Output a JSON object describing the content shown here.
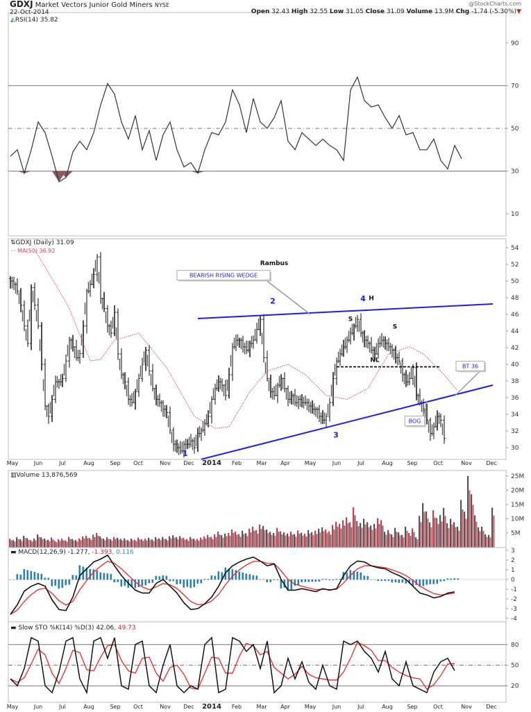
{
  "header": {
    "symbol": "GDXJ",
    "name": "Market Vectors Junior Gold Miners",
    "exchange": "NYSE",
    "date": "22-Oct-2014",
    "watermark": "@StockCharts.com",
    "open_label": "Open",
    "open": "32.43",
    "high_label": "High",
    "high": "32.55",
    "low_label": "Low",
    "low": "31.05",
    "close_label": "Close",
    "close": "31.09",
    "volume_label": "Volume",
    "volume": "13.9M",
    "chg_label": "Chg",
    "chg": "-1.74 (-5.30%)",
    "down_arrow": "▼"
  },
  "colors": {
    "price": "#222222",
    "ma": "#e0405a",
    "trend": "#1a1aff",
    "vol_up": "#c8404f",
    "vol_down": "#555555",
    "macd_hist": "#2a7fb0",
    "signal": "#ff2020"
  },
  "chart_data": [
    {
      "type": "line",
      "panel": "rsi",
      "legend": "RSI(14) 35.82",
      "ylim": [
        0,
        100
      ],
      "yticks": [
        "90",
        "70",
        "50",
        "30",
        "10"
      ],
      "ytick_values": [
        90,
        70,
        50,
        30,
        10
      ],
      "bar_step": 2,
      "values": [
        37,
        40,
        29,
        40,
        53,
        48,
        37,
        25,
        27,
        39,
        44,
        40,
        48,
        61,
        71,
        66,
        53,
        45,
        56,
        40,
        49,
        35,
        47,
        53,
        40,
        32,
        34,
        29,
        40,
        48,
        47,
        53,
        68,
        61,
        48,
        64,
        53,
        50,
        55,
        63,
        44,
        40,
        48,
        45,
        42,
        45,
        42,
        40,
        35,
        68,
        74,
        63,
        60,
        61,
        55,
        50,
        56,
        47,
        48,
        40,
        40,
        45,
        35,
        31,
        42,
        35.82
      ]
    },
    {
      "type": "ohlc",
      "panel": "price",
      "legend": "GDXJ (Daily) 31.09",
      "ma_legend": "MA(50) 36.92",
      "ylim": [
        29,
        55
      ],
      "yticks": [
        "54",
        "52",
        "50",
        "48",
        "46",
        "44",
        "42",
        "40",
        "38",
        "36",
        "34",
        "32",
        "30"
      ],
      "ytick_values": [
        54,
        52,
        50,
        48,
        46,
        44,
        42,
        40,
        38,
        36,
        34,
        32,
        30
      ],
      "x_labels": [
        {
          "label": "May",
          "pos": 0.6
        },
        {
          "label": "Jun",
          "pos": 8
        },
        {
          "label": "Jul",
          "pos": 15
        },
        {
          "label": "Aug",
          "pos": 22.6
        },
        {
          "label": "Sep",
          "pos": 30.2
        },
        {
          "label": "Oct",
          "pos": 36.8
        },
        {
          "label": "Nov",
          "pos": 44.6
        },
        {
          "label": "Dec",
          "pos": 51.4
        },
        {
          "label": "2014",
          "pos": 58,
          "bold": true
        },
        {
          "label": "Feb",
          "pos": 65.2
        },
        {
          "label": "Mar",
          "pos": 72.4
        },
        {
          "label": "Apr",
          "pos": 79.2
        },
        {
          "label": "May",
          "pos": 86.4
        },
        {
          "label": "Jun",
          "pos": 94
        },
        {
          "label": "Jul",
          "pos": 101
        },
        {
          "label": "Aug",
          "pos": 108.6
        },
        {
          "label": "Sep",
          "pos": 115.8
        },
        {
          "label": "Oct",
          "pos": 123.2
        },
        {
          "label": "Nov",
          "pos": 131.4
        },
        {
          "label": "Dec",
          "pos": 138.6
        }
      ],
      "close": [
        50.0,
        49.6,
        48.8,
        47.1,
        44.6,
        42.5,
        49.2,
        47.1,
        44.6,
        40.0,
        35.0,
        33.75,
        35.8,
        37.9,
        37.9,
        38.3,
        40.4,
        42.9,
        42.1,
        40.8,
        41.3,
        44.6,
        48.8,
        49.6,
        50.8,
        52.9,
        47.9,
        46.7,
        44.6,
        43.75,
        46.25,
        41.25,
        38.75,
        37.9,
        35.8,
        35.4,
        36.7,
        38.3,
        40.0,
        41.7,
        39.2,
        37.1,
        35.8,
        35.4,
        34.6,
        34.2,
        32.1,
        30.4,
        30.0,
        29.6,
        30.4,
        30.4,
        30.8,
        30.0,
        31.7,
        32.1,
        32.9,
        33.75,
        35.8,
        37.1,
        37.9,
        37.5,
        36.25,
        38.75,
        42.1,
        42.9,
        42.9,
        42.1,
        41.7,
        42.5,
        42.9,
        44.2,
        45.4,
        40.8,
        38.3,
        36.7,
        36.25,
        37.5,
        38.3,
        37.1,
        35.8,
        36.25,
        35.4,
        35.8,
        35.4,
        35.4,
        35.0,
        34.6,
        34.6,
        33.75,
        33.3,
        33.75,
        35.4,
        38.3,
        40.4,
        41.25,
        42.1,
        42.9,
        43.75,
        44.6,
        45.4,
        43.75,
        42.9,
        42.5,
        41.7,
        41.25,
        42.5,
        42.9,
        42.5,
        42.1,
        41.7,
        40.8,
        40.4,
        38.75,
        37.9,
        38.3,
        39.6,
        36.25,
        35.4,
        34.6,
        33.3,
        31.7,
        32.5,
        33.75,
        33.3,
        31.09
      ],
      "ma50": [
        [
          7,
          53.75
        ],
        [
          13,
          49.6
        ],
        [
          17,
          46.7
        ],
        [
          23,
          40.4
        ],
        [
          26,
          40.6
        ],
        [
          30,
          42.9
        ],
        [
          37,
          43.75
        ],
        [
          45,
          39.6
        ],
        [
          53,
          33.75
        ],
        [
          59,
          32.3
        ],
        [
          63,
          32.5
        ],
        [
          69,
          36.7
        ],
        [
          74,
          39.2
        ],
        [
          80,
          40.0
        ],
        [
          85,
          38.75
        ],
        [
          91,
          36.25
        ],
        [
          97,
          35.8
        ],
        [
          103,
          37.1
        ],
        [
          109,
          41.25
        ],
        [
          115,
          42.1
        ],
        [
          119,
          41.25
        ],
        [
          125,
          38.75
        ],
        [
          128.6,
          36.92
        ]
      ],
      "trendlines": [
        {
          "name": "wedge-upper",
          "from": [
            54,
            45.5
          ],
          "to": [
            139,
            47.25
          ],
          "style": "solid"
        },
        {
          "name": "wedge-lower",
          "from": [
            55,
            28.6
          ],
          "to": [
            139,
            37.5
          ],
          "style": "solid"
        },
        {
          "name": "neckline",
          "from": [
            94,
            39.7
          ],
          "to": [
            124,
            39.7
          ],
          "style": "dashed"
        }
      ],
      "annotations": [
        {
          "id": "title",
          "text": "Rambus",
          "pos": [
            76,
            51.9
          ],
          "kind": "bold"
        },
        {
          "id": "wave-1",
          "text": "1",
          "pos": [
            50.4,
            29.0
          ],
          "kind": "wave"
        },
        {
          "id": "wave-2",
          "text": "2",
          "pos": [
            75.6,
            47.3
          ],
          "kind": "wave"
        },
        {
          "id": "wave-3",
          "text": "3",
          "pos": [
            93.8,
            31.2
          ],
          "kind": "wave"
        },
        {
          "id": "wave-4",
          "text": "4",
          "pos": [
            101.6,
            47.6
          ],
          "kind": "wave"
        },
        {
          "id": "head",
          "text": "H",
          "pos": [
            104,
            47.7
          ],
          "kind": "bold"
        },
        {
          "id": "left-shoulder",
          "text": "S",
          "pos": [
            98,
            45.2
          ],
          "kind": "bold"
        },
        {
          "id": "right-shoulder",
          "text": "S",
          "pos": [
            110.8,
            44.3
          ],
          "kind": "bold"
        },
        {
          "id": "neckline-label",
          "text": "NL",
          "pos": [
            105,
            40.3
          ],
          "kind": "bold"
        }
      ],
      "callouts": [
        {
          "id": "bearish-rising-wedge",
          "text": "BEARISH RISING WEDGE",
          "pos": [
            61.4,
            50.7
          ],
          "target": [
            86.4,
            46.0
          ]
        },
        {
          "id": "bt-36",
          "text": "BT 36",
          "pos": [
            132.5,
            39.8
          ],
          "target": [
            128,
            36.2
          ]
        },
        {
          "id": "bog",
          "text": "BOG",
          "pos": [
            116.5,
            33.2
          ],
          "target": [
            120,
            35.6
          ]
        }
      ]
    },
    {
      "type": "bar",
      "panel": "volume",
      "legend": "Volume 13,876,569",
      "ylim": [
        0,
        26
      ],
      "yticks": [
        "25M",
        "20M",
        "15M",
        "10M",
        "5M"
      ],
      "ytick_values": [
        25,
        20,
        15,
        10,
        5
      ],
      "values_millions": [
        3,
        2.5,
        3.5,
        2.8,
        4,
        3.2,
        2.5,
        3,
        4.5,
        3.5,
        3,
        2.6,
        3.4,
        2.2,
        2.8,
        3,
        2.4,
        3.6,
        2.9,
        2.5,
        3.1,
        3.8,
        4,
        3.2,
        4.4,
        5,
        3.8,
        3,
        3.5,
        2.8,
        3.6,
        3.3,
        2.9,
        3.1,
        2.5,
        3,
        2.6,
        3.4,
        2.8,
        3,
        3.3,
        2.7,
        3.5,
        3.1,
        3.6,
        2.9,
        3.8,
        4.2,
        3.5,
        3.9,
        3.3,
        2.8,
        3.6,
        3,
        2.9,
        3.4,
        3.8,
        4.3,
        3.6,
        4.5,
        5.5,
        4.2,
        4.8,
        5,
        6.2,
        5.5,
        4.6,
        5.8,
        4.9,
        6.5,
        7.2,
        6,
        8,
        7.5,
        6.2,
        5.4,
        5,
        6.8,
        5.6,
        5.2,
        4.8,
        5.5,
        4.6,
        5.9,
        5.1,
        4.7,
        6,
        5.3,
        5.8,
        6.5,
        7,
        6.2,
        5.6,
        7.8,
        9,
        8.2,
        9.5,
        10.5,
        8.8,
        14,
        9.2,
        8.5,
        10,
        8.8,
        7.6,
        8.2,
        10.2,
        9.5,
        5.4,
        6,
        4.5,
        6.8,
        5.2,
        4.3,
        7.2,
        5,
        6.6,
        3.5,
        11,
        15.5,
        12.6,
        8.7,
        13,
        10.2,
        11.3,
        13.8,
        8.4,
        10,
        8.8,
        7.2,
        16.6,
        12.5,
        25,
        18.6,
        11.2,
        7,
        7.2,
        4.5,
        4.3,
        13.9
      ],
      "up_days_hint": "red=up, gray=down"
    },
    {
      "type": "line",
      "panel": "macd",
      "legend_prefix": "MACD(12,26,9)",
      "legend_macd": "-1.277",
      "legend_signal": ", -1.393",
      "legend_hist": ", 0.116",
      "ylim": [
        -4.3,
        3.3
      ],
      "yticks": [
        "3",
        "2",
        "1",
        "0",
        "-1",
        "-2",
        "-3",
        "-4"
      ],
      "ytick_values": [
        3,
        2,
        1,
        0,
        -1,
        -2,
        -3,
        -4
      ],
      "bar_step": 2,
      "macd": [
        -3.6,
        -2.6,
        -1.2,
        -0.7,
        -0.4,
        -0.7,
        -2.1,
        -3.1,
        -3.2,
        -1.8,
        0.4,
        1.1,
        1.8,
        2.1,
        2.5,
        1.4,
        0.4,
        -0.4,
        -1.1,
        -1.4,
        -1.4,
        -0.4,
        0,
        -0.7,
        -1.4,
        -2.4,
        -3.1,
        -3.0,
        -2.5,
        -1.8,
        -0.7,
        0.7,
        1.4,
        1.8,
        2.1,
        2.3,
        1.9,
        1.4,
        1.6,
        0,
        -1.1,
        -1.1,
        -0.95,
        -1.1,
        -1.25,
        -0.95,
        -1.1,
        -0.95,
        0.4,
        1.4,
        1.9,
        1.8,
        1.4,
        1.2,
        1.1,
        0.7,
        0.4,
        0,
        -0.7,
        -1.4,
        -1.6,
        -1.9,
        -1.75,
        -1.4,
        -1.277
      ]
    },
    {
      "type": "line",
      "panel": "sto",
      "legend_prefix": "Slow STO %K(14) %D(3)",
      "legend_k": "42.06",
      "legend_d": ", 49.73",
      "ylim": [
        0,
        100
      ],
      "yticks": [
        "80",
        "50",
        "20"
      ],
      "ytick_values": [
        80,
        50,
        20
      ],
      "bar_step": 2,
      "k": [
        30,
        20,
        45,
        90,
        85,
        20,
        10,
        40,
        85,
        90,
        30,
        10,
        85,
        90,
        60,
        90,
        20,
        15,
        80,
        85,
        20,
        10,
        50,
        80,
        20,
        10,
        20,
        15,
        80,
        90,
        10,
        15,
        90,
        85,
        70,
        80,
        45,
        85,
        10,
        20,
        60,
        30,
        55,
        25,
        15,
        50,
        20,
        15,
        85,
        80,
        85,
        70,
        60,
        40,
        70,
        30,
        20,
        55,
        20,
        15,
        10,
        40,
        55,
        60,
        42.06
      ]
    }
  ]
}
